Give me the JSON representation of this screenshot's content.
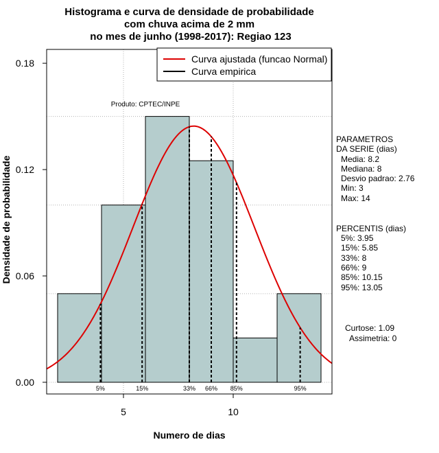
{
  "chart_data": {
    "type": "histogram",
    "title": [
      "Histograma e curva de densidade de probabilidade",
      "com chuva acima de 2 mm",
      "no mes de junho (1998-2017): Regiao 123"
    ],
    "xlabel": "Numero de dias",
    "ylabel": "Densidade de probabilidade",
    "xlim": [
      1.5,
      14.5
    ],
    "ylim": [
      0,
      0.18
    ],
    "xticks": [
      5,
      10
    ],
    "yticks": [
      0.0,
      0.06,
      0.12,
      0.18
    ],
    "ytick_labels": [
      "0.00",
      "0.06",
      "0.12",
      "0.18"
    ],
    "grid": true,
    "bins": [
      {
        "from": 2,
        "to": 4,
        "density": 0.05
      },
      {
        "from": 4,
        "to": 6,
        "density": 0.1
      },
      {
        "from": 6,
        "to": 8,
        "density": 0.15
      },
      {
        "from": 8,
        "to": 10,
        "density": 0.125
      },
      {
        "from": 10,
        "to": 12,
        "density": 0.025
      },
      {
        "from": 12,
        "to": 14,
        "density": 0.05
      }
    ],
    "bar_color": "#b5cdcd",
    "normal_fit": {
      "mean": 8.2,
      "sd": 2.76,
      "color": "#dd0000"
    },
    "percentile_lines": [
      {
        "label": "5%",
        "x": 3.95
      },
      {
        "label": "15%",
        "x": 5.85
      },
      {
        "label": "33%",
        "x": 8
      },
      {
        "label": "66%",
        "x": 9
      },
      {
        "label": "85%",
        "x": 10.15
      },
      {
        "label": "95%",
        "x": 13.05
      }
    ],
    "legend": {
      "position": "top-right",
      "entries": [
        {
          "label": "Curva ajustada (funcao Normal)",
          "color": "#dd0000"
        },
        {
          "label": "Curva empirica",
          "color": "#000000"
        }
      ]
    },
    "credit": "Produto: CPTEC/INPE"
  },
  "side_panel": {
    "params_title": [
      "PARAMETROS",
      "DA SERIE (dias)"
    ],
    "params": [
      "Media: 8.2",
      "Mediana: 8",
      "Desvio padrao: 2.76",
      "Min: 3",
      "Max: 14"
    ],
    "percentis_title": "PERCENTIS (dias)",
    "percentis": [
      "5%: 3.95",
      "15%: 5.85",
      "33%: 8",
      "66%: 9",
      "85%: 10.15",
      "95%: 13.05"
    ],
    "curtose": "Curtose: 1.09",
    "assimetria": "Assimetria: 0"
  }
}
